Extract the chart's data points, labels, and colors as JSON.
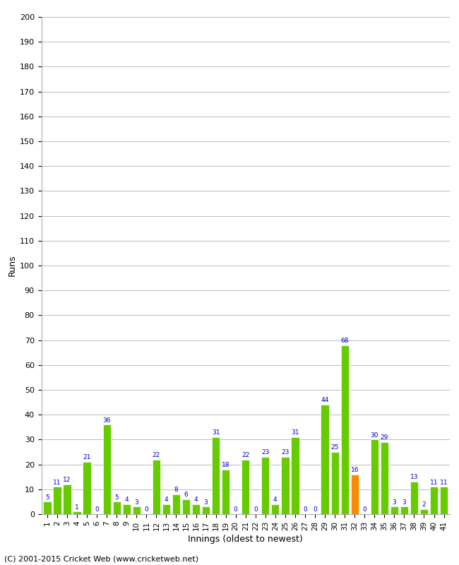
{
  "innings": [
    1,
    2,
    3,
    4,
    5,
    6,
    7,
    8,
    9,
    10,
    11,
    12,
    13,
    14,
    15,
    16,
    17,
    18,
    19,
    20,
    21,
    22,
    23,
    24,
    25,
    26,
    27,
    28,
    29,
    30,
    31,
    32,
    33,
    34,
    35,
    36,
    37,
    38,
    39,
    40,
    41
  ],
  "runs": [
    5,
    11,
    12,
    1,
    21,
    0,
    36,
    5,
    4,
    3,
    0,
    22,
    4,
    8,
    6,
    4,
    3,
    31,
    18,
    0,
    22,
    0,
    23,
    4,
    23,
    31,
    0,
    0,
    44,
    25,
    68,
    16,
    0,
    30,
    29,
    3,
    3,
    13,
    2,
    11,
    11
  ],
  "colors": [
    "#66cc00",
    "#66cc00",
    "#66cc00",
    "#66cc00",
    "#66cc00",
    "#66cc00",
    "#66cc00",
    "#66cc00",
    "#66cc00",
    "#66cc00",
    "#66cc00",
    "#66cc00",
    "#66cc00",
    "#66cc00",
    "#66cc00",
    "#66cc00",
    "#66cc00",
    "#66cc00",
    "#66cc00",
    "#66cc00",
    "#66cc00",
    "#66cc00",
    "#66cc00",
    "#66cc00",
    "#66cc00",
    "#66cc00",
    "#66cc00",
    "#66cc00",
    "#66cc00",
    "#66cc00",
    "#66cc00",
    "#ff8800",
    "#66cc00",
    "#66cc00",
    "#66cc00",
    "#66cc00",
    "#66cc00",
    "#66cc00",
    "#66cc00",
    "#66cc00",
    "#66cc00"
  ],
  "xlabel": "Innings (oldest to newest)",
  "ylabel": "Runs",
  "ylim": [
    0,
    200
  ],
  "yticks": [
    0,
    10,
    20,
    30,
    40,
    50,
    60,
    70,
    80,
    90,
    100,
    110,
    120,
    130,
    140,
    150,
    160,
    170,
    180,
    190,
    200
  ],
  "label_color": "#0000cc",
  "bg_color": "#ffffff",
  "grid_color": "#bbbbbb",
  "footer": "(C) 2001-2015 Cricket Web (www.cricketweb.net)"
}
